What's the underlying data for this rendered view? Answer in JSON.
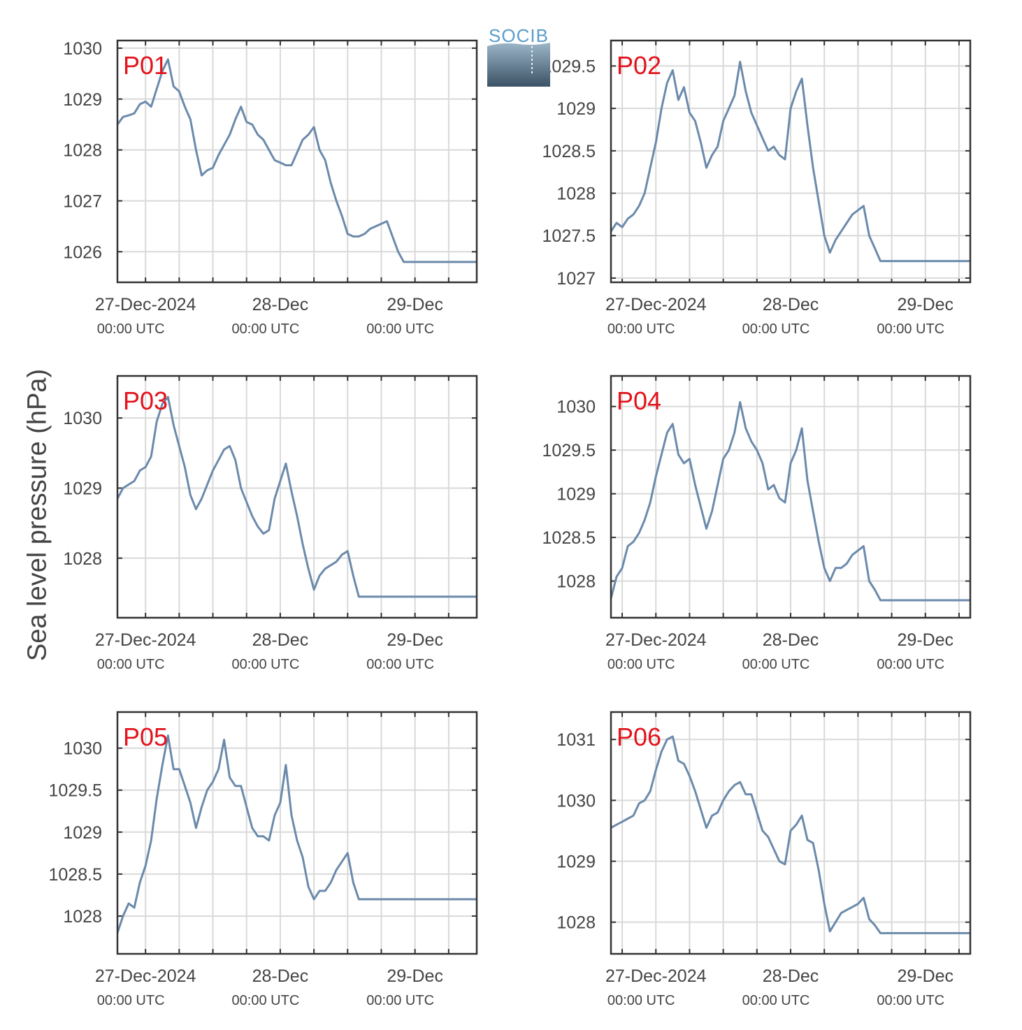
{
  "figure": {
    "ylabel": "Sea level pressure (hPa)",
    "logo_text": "SOCIB",
    "colors": {
      "line": "#6b8aab",
      "panel_label": "#e3121b",
      "grid": "#d9d9d9",
      "axis": "#333333"
    }
  },
  "chart_data": [
    {
      "type": "line",
      "label": "P01",
      "x_tick_labels": [
        [
          "27-Dec-2024",
          "00:00 UTC"
        ],
        [
          "28-Dec",
          "00:00 UTC"
        ],
        [
          "29-Dec",
          "00:00 UTC"
        ]
      ],
      "x_unit": "hours since 27-Dec-2024 00:00 UTC",
      "xlim": [
        -5,
        59
      ],
      "ylim": [
        1025.4,
        1030.15
      ],
      "yticks": [
        1026,
        1027,
        1028,
        1029,
        1030
      ],
      "y_tick_labels": [
        "1026",
        "1027",
        "1028",
        "1029",
        "1030"
      ],
      "x": [
        -5,
        -4,
        -3,
        -2,
        -1,
        0,
        1,
        2,
        3,
        4,
        5,
        6,
        7,
        8,
        9,
        10,
        11,
        12,
        13,
        14,
        15,
        16,
        17,
        18,
        19,
        20,
        21,
        22,
        23,
        24,
        25,
        26,
        27,
        28,
        29,
        30,
        31,
        32,
        33,
        34,
        35,
        36,
        37,
        38,
        39,
        40,
        41,
        42,
        43,
        44,
        45,
        46,
        47,
        48,
        49,
        50,
        51,
        52,
        53,
        54,
        55,
        56,
        57,
        58,
        59
      ],
      "y": [
        1028.5,
        1028.65,
        1028.68,
        1028.72,
        1028.9,
        1028.95,
        1028.85,
        1029.2,
        1029.55,
        1029.78,
        1029.25,
        1029.15,
        1028.85,
        1028.6,
        1028.0,
        1027.5,
        1027.6,
        1027.65,
        1027.9,
        1028.1,
        1028.3,
        1028.6,
        1028.85,
        1028.55,
        1028.5,
        1028.3,
        1028.2,
        1028.0,
        1027.8,
        1027.75,
        1027.7,
        1027.7,
        1027.95,
        1028.2,
        1028.3,
        1028.45,
        1028.0,
        1027.8,
        1027.35,
        1027.0,
        1026.7,
        1026.35,
        1026.3,
        1026.3,
        1026.35,
        1026.45,
        1026.5,
        1026.55,
        1026.6,
        1026.3,
        1026.0,
        1025.8,
        1025.8,
        1025.8,
        1025.8,
        1025.8,
        1025.8,
        1025.8,
        1025.8,
        1025.8,
        1025.8,
        1025.8,
        1025.8,
        1025.8,
        1025.8
      ],
      "x_end": 59
    },
    {
      "type": "line",
      "label": "P02",
      "x_tick_labels": [
        [
          "27-Dec-2024",
          "00:00 UTC"
        ],
        [
          "28-Dec",
          "00:00 UTC"
        ],
        [
          "29-Dec",
          "00:00 UTC"
        ]
      ],
      "x_unit": "hours since 27-Dec-2024 00:00 UTC",
      "xlim": [
        -8,
        56
      ],
      "ylim": [
        1026.95,
        1029.8
      ],
      "yticks": [
        1027,
        1027.5,
        1028,
        1028.5,
        1029,
        1029.5
      ],
      "y_tick_labels": [
        "1027",
        "1027.5",
        "1028",
        "1028.5",
        "1029",
        "1029.5"
      ],
      "x": [
        -8,
        -7,
        -6,
        -5,
        -4,
        -3,
        -2,
        -1,
        0,
        1,
        2,
        3,
        4,
        5,
        6,
        7,
        8,
        9,
        10,
        11,
        12,
        13,
        14,
        15,
        16,
        17,
        18,
        19,
        20,
        21,
        22,
        23,
        24,
        25,
        26,
        27,
        28,
        29,
        30,
        31,
        32,
        33,
        34,
        35,
        36,
        37,
        38,
        39,
        40,
        41,
        42,
        43,
        44,
        45,
        46,
        47,
        48,
        49,
        50,
        51,
        52,
        53,
        54,
        55,
        56
      ],
      "y": [
        1027.55,
        1027.65,
        1027.6,
        1027.7,
        1027.75,
        1027.85,
        1028.0,
        1028.3,
        1028.6,
        1029.0,
        1029.3,
        1029.45,
        1029.1,
        1029.25,
        1028.95,
        1028.85,
        1028.6,
        1028.3,
        1028.45,
        1028.55,
        1028.85,
        1029.0,
        1029.15,
        1029.55,
        1029.2,
        1028.95,
        1028.8,
        1028.65,
        1028.5,
        1028.55,
        1028.45,
        1028.4,
        1029.0,
        1029.2,
        1029.35,
        1028.8,
        1028.3,
        1027.9,
        1027.5,
        1027.3,
        1027.45,
        1027.55,
        1027.65,
        1027.75,
        1027.8,
        1027.85,
        1027.5,
        1027.35,
        1027.2,
        1027.2,
        1027.2,
        1027.2,
        1027.2,
        1027.2,
        1027.2,
        1027.2,
        1027.2,
        1027.2,
        1027.2,
        1027.2,
        1027.2,
        1027.2,
        1027.2,
        1027.2,
        1027.2
      ],
      "x_end": 56
    },
    {
      "type": "line",
      "label": "P03",
      "x_tick_labels": [
        [
          "27-Dec-2024",
          "00:00 UTC"
        ],
        [
          "28-Dec",
          "00:00 UTC"
        ],
        [
          "29-Dec",
          "00:00 UTC"
        ]
      ],
      "x_unit": "hours since 27-Dec-2024 00:00 UTC",
      "xlim": [
        -5,
        59
      ],
      "ylim": [
        1027.15,
        1030.6
      ],
      "yticks": [
        1028,
        1029,
        1030
      ],
      "y_tick_labels": [
        "1028",
        "1029",
        "1030"
      ],
      "x": [
        -5,
        -4,
        -3,
        -2,
        -1,
        0,
        1,
        2,
        3,
        4,
        5,
        6,
        7,
        8,
        9,
        10,
        11,
        12,
        13,
        14,
        15,
        16,
        17,
        18,
        19,
        20,
        21,
        22,
        23,
        24,
        25,
        26,
        27,
        28,
        29,
        30,
        31,
        32,
        33,
        34,
        35,
        36,
        37,
        38,
        39,
        40,
        41,
        42,
        43,
        44,
        45,
        46,
        47,
        48,
        49,
        50,
        51,
        52,
        53,
        54,
        55,
        56,
        57,
        58,
        59
      ],
      "y": [
        1028.85,
        1029.0,
        1029.05,
        1029.1,
        1029.25,
        1029.3,
        1029.45,
        1029.95,
        1030.2,
        1030.3,
        1029.9,
        1029.6,
        1029.3,
        1028.9,
        1028.7,
        1028.85,
        1029.05,
        1029.25,
        1029.4,
        1029.55,
        1029.6,
        1029.4,
        1029.0,
        1028.8,
        1028.6,
        1028.45,
        1028.35,
        1028.4,
        1028.85,
        1029.1,
        1029.35,
        1028.95,
        1028.6,
        1028.2,
        1027.85,
        1027.55,
        1027.75,
        1027.85,
        1027.9,
        1027.95,
        1028.05,
        1028.1,
        1027.75,
        1027.45,
        1027.45,
        1027.45,
        1027.45,
        1027.45,
        1027.45,
        1027.45,
        1027.45,
        1027.45,
        1027.45,
        1027.45,
        1027.45,
        1027.45,
        1027.45,
        1027.45,
        1027.45,
        1027.45,
        1027.45,
        1027.45,
        1027.45,
        1027.45,
        1027.45
      ],
      "x_end": 59
    },
    {
      "type": "line",
      "label": "P04",
      "x_tick_labels": [
        [
          "27-Dec-2024",
          "00:00 UTC"
        ],
        [
          "28-Dec",
          "00:00 UTC"
        ],
        [
          "29-Dec",
          "00:00 UTC"
        ]
      ],
      "x_unit": "hours since 27-Dec-2024 00:00 UTC",
      "xlim": [
        -8,
        56
      ],
      "ylim": [
        1027.58,
        1030.35
      ],
      "yticks": [
        1028,
        1028.5,
        1029,
        1029.5,
        1030
      ],
      "y_tick_labels": [
        "1028",
        "1028.5",
        "1029",
        "1029.5",
        "1030"
      ],
      "x": [
        -8,
        -7,
        -6,
        -5,
        -4,
        -3,
        -2,
        -1,
        0,
        1,
        2,
        3,
        4,
        5,
        6,
        7,
        8,
        9,
        10,
        11,
        12,
        13,
        14,
        15,
        16,
        17,
        18,
        19,
        20,
        21,
        22,
        23,
        24,
        25,
        26,
        27,
        28,
        29,
        30,
        31,
        32,
        33,
        34,
        35,
        36,
        37,
        38,
        39,
        40,
        41,
        42,
        43,
        44,
        45,
        46,
        47,
        48,
        49,
        50,
        51,
        52,
        53,
        54,
        55,
        56
      ],
      "y": [
        1027.8,
        1028.05,
        1028.15,
        1028.4,
        1028.45,
        1028.55,
        1028.7,
        1028.9,
        1029.2,
        1029.45,
        1029.7,
        1029.8,
        1029.45,
        1029.35,
        1029.4,
        1029.1,
        1028.85,
        1028.6,
        1028.8,
        1029.1,
        1029.4,
        1029.5,
        1029.7,
        1030.05,
        1029.75,
        1029.6,
        1029.5,
        1029.35,
        1029.05,
        1029.1,
        1028.95,
        1028.9,
        1029.35,
        1029.5,
        1029.75,
        1029.15,
        1028.8,
        1028.45,
        1028.15,
        1028.0,
        1028.15,
        1028.15,
        1028.2,
        1028.3,
        1028.35,
        1028.4,
        1028.0,
        1027.9,
        1027.78,
        1027.78,
        1027.78,
        1027.78,
        1027.78,
        1027.78,
        1027.78,
        1027.78,
        1027.78,
        1027.78,
        1027.78,
        1027.78,
        1027.78,
        1027.78,
        1027.78,
        1027.78,
        1027.78
      ],
      "x_end": 56
    },
    {
      "type": "line",
      "label": "P05",
      "x_tick_labels": [
        [
          "27-Dec-2024",
          "00:00 UTC"
        ],
        [
          "28-Dec",
          "00:00 UTC"
        ],
        [
          "29-Dec",
          "00:00 UTC"
        ]
      ],
      "x_unit": "hours since 27-Dec-2024 00:00 UTC",
      "xlim": [
        -5,
        59
      ],
      "ylim": [
        1027.55,
        1030.43
      ],
      "yticks": [
        1028,
        1028.5,
        1029,
        1029.5,
        1030
      ],
      "y_tick_labels": [
        "1028",
        "1028.5",
        "1029",
        "1029.5",
        "1030"
      ],
      "x": [
        -5,
        -4,
        -3,
        -2,
        -1,
        0,
        1,
        2,
        3,
        4,
        5,
        6,
        7,
        8,
        9,
        10,
        11,
        12,
        13,
        14,
        15,
        16,
        17,
        18,
        19,
        20,
        21,
        22,
        23,
        24,
        25,
        26,
        27,
        28,
        29,
        30,
        31,
        32,
        33,
        34,
        35,
        36,
        37,
        38,
        39,
        40,
        41,
        42,
        43,
        44,
        45,
        46,
        47,
        48,
        49,
        50,
        51,
        52,
        53,
        54,
        55,
        56,
        57,
        58,
        59
      ],
      "y": [
        1027.8,
        1028.0,
        1028.15,
        1028.1,
        1028.4,
        1028.6,
        1028.9,
        1029.4,
        1029.8,
        1030.15,
        1029.75,
        1029.75,
        1029.55,
        1029.35,
        1029.05,
        1029.3,
        1029.5,
        1029.6,
        1029.75,
        1030.1,
        1029.65,
        1029.55,
        1029.55,
        1029.3,
        1029.05,
        1028.95,
        1028.95,
        1028.9,
        1029.2,
        1029.35,
        1029.8,
        1029.2,
        1028.9,
        1028.7,
        1028.35,
        1028.2,
        1028.3,
        1028.3,
        1028.4,
        1028.55,
        1028.65,
        1028.75,
        1028.4,
        1028.2,
        1028.2,
        1028.2,
        1028.2,
        1028.2,
        1028.2,
        1028.2,
        1028.2,
        1028.2,
        1028.2,
        1028.2,
        1028.2,
        1028.2,
        1028.2,
        1028.2,
        1028.2,
        1028.2,
        1028.2,
        1028.2,
        1028.2,
        1028.2,
        1028.2
      ],
      "x_end": 59
    },
    {
      "type": "line",
      "label": "P06",
      "x_tick_labels": [
        [
          "27-Dec-2024",
          "00:00 UTC"
        ],
        [
          "28-Dec",
          "00:00 UTC"
        ],
        [
          "29-Dec",
          "00:00 UTC"
        ]
      ],
      "x_unit": "hours since 27-Dec-2024 00:00 UTC",
      "xlim": [
        -8,
        56
      ],
      "ylim": [
        1027.48,
        1031.45
      ],
      "yticks": [
        1028,
        1029,
        1030,
        1031
      ],
      "y_tick_labels": [
        "1028",
        "1029",
        "1030",
        "1031"
      ],
      "x": [
        -8,
        -7,
        -6,
        -5,
        -4,
        -3,
        -2,
        -1,
        0,
        1,
        2,
        3,
        4,
        5,
        6,
        7,
        8,
        9,
        10,
        11,
        12,
        13,
        14,
        15,
        16,
        17,
        18,
        19,
        20,
        21,
        22,
        23,
        24,
        25,
        26,
        27,
        28,
        29,
        30,
        31,
        32,
        33,
        34,
        35,
        36,
        37,
        38,
        39,
        40,
        41,
        42,
        43,
        44,
        45,
        46,
        47,
        48,
        49,
        50,
        51,
        52,
        53,
        54,
        55,
        56
      ],
      "y": [
        1029.55,
        1029.6,
        1029.65,
        1029.7,
        1029.75,
        1029.95,
        1030.0,
        1030.15,
        1030.5,
        1030.8,
        1031.0,
        1031.05,
        1030.65,
        1030.6,
        1030.4,
        1030.15,
        1029.85,
        1029.55,
        1029.75,
        1029.8,
        1030.0,
        1030.15,
        1030.25,
        1030.3,
        1030.1,
        1030.1,
        1029.8,
        1029.5,
        1029.4,
        1029.2,
        1029.0,
        1028.95,
        1029.5,
        1029.6,
        1029.75,
        1029.35,
        1029.3,
        1028.85,
        1028.3,
        1027.85,
        1028.0,
        1028.15,
        1028.2,
        1028.25,
        1028.3,
        1028.4,
        1028.05,
        1027.95,
        1027.82,
        1027.82,
        1027.82,
        1027.82,
        1027.82,
        1027.82,
        1027.82,
        1027.82,
        1027.82,
        1027.82,
        1027.82,
        1027.82,
        1027.82,
        1027.82,
        1027.82,
        1027.82,
        1027.82
      ],
      "x_end": 56
    }
  ]
}
